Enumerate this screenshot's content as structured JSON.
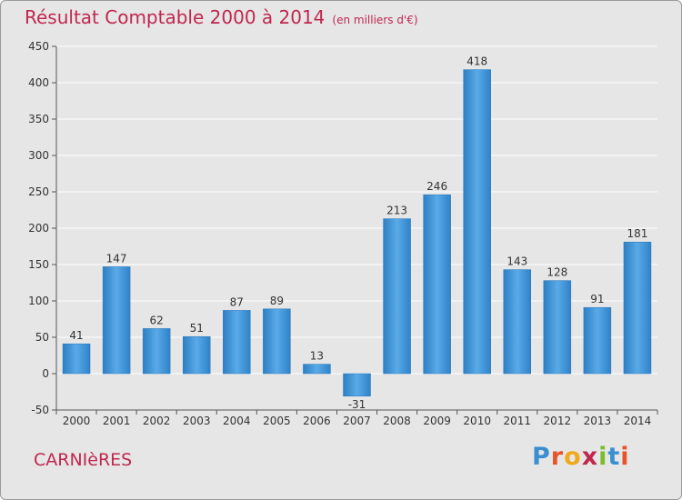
{
  "title": "Résultat Comptable 2000 à 2014",
  "subtitle": "(en milliers d'€)",
  "city": "CARNIèRES",
  "logo": {
    "letters": [
      {
        "ch": "P",
        "color": "#3b8fd1"
      },
      {
        "ch": "r",
        "color": "#e8542a"
      },
      {
        "ch": "o",
        "color": "#f0a81c"
      },
      {
        "ch": "x",
        "color": "#c0274f"
      },
      {
        "ch": "i",
        "color": "#7dbb2e"
      },
      {
        "ch": "t",
        "color": "#3b8fd1"
      },
      {
        "ch": "i",
        "color": "#e8542a"
      }
    ]
  },
  "chart_data": {
    "type": "bar",
    "categories": [
      "2000",
      "2001",
      "2002",
      "2003",
      "2004",
      "2005",
      "2006",
      "2007",
      "2008",
      "2009",
      "2010",
      "2011",
      "2012",
      "2013",
      "2014"
    ],
    "values": [
      41,
      147,
      62,
      51,
      87,
      89,
      13,
      -31,
      213,
      246,
      418,
      143,
      128,
      91,
      181
    ],
    "title": "Résultat Comptable 2000 à 2014",
    "subtitle": "(en milliers d'€)",
    "xlabel": "",
    "ylabel": "",
    "ylim": [
      -50,
      450
    ],
    "yticks": [
      -50,
      0,
      50,
      100,
      150,
      200,
      250,
      300,
      350,
      400,
      450
    ],
    "grid": true,
    "bar_color": "#3a8fd4",
    "grid_color": "#ffffff",
    "plot_background": "#e6e6e6"
  }
}
